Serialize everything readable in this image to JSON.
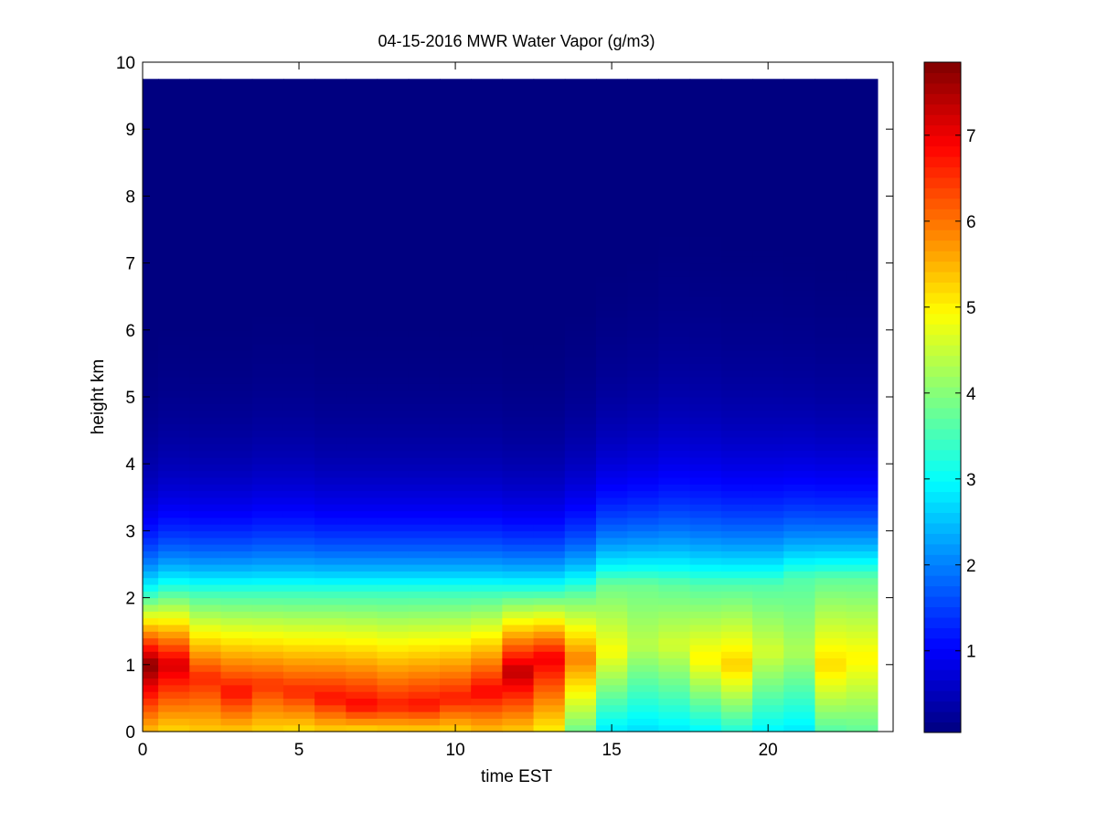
{
  "chart_data": {
    "type": "heatmap",
    "title": "04-15-2016 MWR Water Vapor (g/m3)",
    "xlabel": "time EST",
    "ylabel": "height km",
    "xlim": [
      0,
      24
    ],
    "ylim": [
      0,
      10
    ],
    "x_ticks": [
      "0",
      "5",
      "10",
      "15",
      "20"
    ],
    "y_ticks": [
      "0",
      "1",
      "2",
      "3",
      "4",
      "5",
      "6",
      "7",
      "8",
      "9",
      "10"
    ],
    "colorbar": {
      "range": [
        0.05,
        7.85
      ],
      "tick_labels": [
        "1",
        "2",
        "3",
        "4",
        "5",
        "6",
        "7"
      ],
      "colormap": "jet"
    },
    "x": [
      0,
      1,
      2,
      3,
      4,
      5,
      6,
      7,
      8,
      9,
      10,
      11,
      12,
      13,
      14,
      15,
      16,
      17,
      18,
      19,
      20,
      21,
      22,
      23
    ],
    "z_top_km": 9.75,
    "profiles": [
      {
        "hour": 0,
        "w0": 5.4,
        "peak": 7.8,
        "peak_h": 1.0,
        "pbl": 2.0,
        "above": 3.6,
        "scale": 0.9
      },
      {
        "hour": 1,
        "w0": 5.2,
        "peak": 7.2,
        "peak_h": 1.0,
        "pbl": 2.1,
        "above": 3.5,
        "scale": 0.95
      },
      {
        "hour": 2,
        "w0": 5.3,
        "peak": 6.6,
        "peak_h": 0.8,
        "pbl": 2.1,
        "above": 3.4,
        "scale": 0.95
      },
      {
        "hour": 3,
        "w0": 5.3,
        "peak": 6.8,
        "peak_h": 0.6,
        "pbl": 2.1,
        "above": 3.4,
        "scale": 0.95
      },
      {
        "hour": 4,
        "w0": 5.2,
        "peak": 6.5,
        "peak_h": 0.7,
        "pbl": 2.1,
        "above": 3.4,
        "scale": 1.0
      },
      {
        "hour": 5,
        "w0": 5.1,
        "peak": 6.6,
        "peak_h": 0.6,
        "pbl": 2.1,
        "above": 3.4,
        "scale": 1.0
      },
      {
        "hour": 6,
        "w0": 5.2,
        "peak": 6.8,
        "peak_h": 0.5,
        "pbl": 2.1,
        "above": 3.4,
        "scale": 0.95
      },
      {
        "hour": 7,
        "w0": 5.1,
        "peak": 6.9,
        "peak_h": 0.4,
        "pbl": 2.1,
        "above": 3.4,
        "scale": 0.95
      },
      {
        "hour": 8,
        "w0": 5.2,
        "peak": 6.7,
        "peak_h": 0.4,
        "pbl": 2.1,
        "above": 3.4,
        "scale": 0.95
      },
      {
        "hour": 9,
        "w0": 5.2,
        "peak": 6.8,
        "peak_h": 0.4,
        "pbl": 2.1,
        "above": 3.4,
        "scale": 0.95
      },
      {
        "hour": 10,
        "w0": 5.2,
        "peak": 6.7,
        "peak_h": 0.5,
        "pbl": 2.1,
        "above": 3.4,
        "scale": 0.95
      },
      {
        "hour": 11,
        "w0": 5.4,
        "peak": 6.9,
        "peak_h": 0.6,
        "pbl": 2.1,
        "above": 3.4,
        "scale": 0.95
      },
      {
        "hour": 12,
        "w0": 5.3,
        "peak": 7.4,
        "peak_h": 0.9,
        "pbl": 2.1,
        "above": 3.4,
        "scale": 0.9
      },
      {
        "hour": 13,
        "w0": 5.0,
        "peak": 7.0,
        "peak_h": 1.1,
        "pbl": 2.1,
        "above": 3.4,
        "scale": 0.9
      },
      {
        "hour": 14,
        "w0": 3.8,
        "peak": 5.9,
        "peak_h": 1.1,
        "pbl": 2.1,
        "above": 3.6,
        "scale": 1.0
      },
      {
        "hour": 15,
        "w0": 2.8,
        "peak": 4.9,
        "peak_h": 1.2,
        "pbl": 2.2,
        "above": 3.8,
        "scale": 1.1
      },
      {
        "hour": 16,
        "w0": 2.7,
        "peak": 4.4,
        "peak_h": 1.3,
        "pbl": 2.2,
        "above": 3.8,
        "scale": 1.15
      },
      {
        "hour": 17,
        "w0": 2.8,
        "peak": 4.6,
        "peak_h": 1.3,
        "pbl": 2.2,
        "above": 3.7,
        "scale": 1.25
      },
      {
        "hour": 18,
        "w0": 2.9,
        "peak": 5.0,
        "peak_h": 1.1,
        "pbl": 2.2,
        "above": 3.6,
        "scale": 1.25
      },
      {
        "hour": 19,
        "w0": 3.2,
        "peak": 5.3,
        "peak_h": 1.0,
        "pbl": 2.2,
        "above": 3.6,
        "scale": 1.2
      },
      {
        "hour": 20,
        "w0": 2.9,
        "peak": 4.6,
        "peak_h": 1.2,
        "pbl": 2.2,
        "above": 3.6,
        "scale": 1.2
      },
      {
        "hour": 21,
        "w0": 2.8,
        "peak": 4.3,
        "peak_h": 1.2,
        "pbl": 2.3,
        "above": 3.6,
        "scale": 1.15
      },
      {
        "hour": 22,
        "w0": 3.6,
        "peak": 5.2,
        "peak_h": 1.0,
        "pbl": 2.3,
        "above": 3.7,
        "scale": 1.1
      },
      {
        "hour": 23,
        "w0": 3.7,
        "peak": 5.0,
        "peak_h": 1.1,
        "pbl": 2.3,
        "above": 3.7,
        "scale": 1.1
      }
    ]
  }
}
